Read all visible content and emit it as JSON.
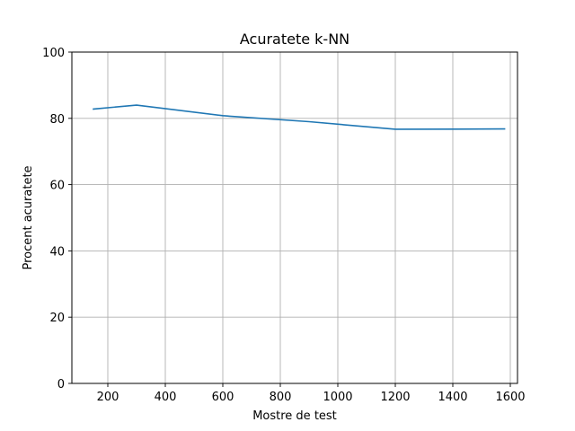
{
  "chart_data": {
    "type": "line",
    "title": "Acuratete k-NN",
    "xlabel": "Mostre de test",
    "ylabel": "Procent acuratete",
    "xlim": [
      75,
      1625
    ],
    "ylim": [
      0,
      100
    ],
    "grid": true,
    "x_ticks": [
      200,
      400,
      600,
      800,
      1000,
      1200,
      1400,
      1600
    ],
    "y_ticks": [
      0,
      20,
      40,
      60,
      80,
      100
    ],
    "line_color": "#1f77b4",
    "series": [
      {
        "x": [
          150,
          300,
          600,
          900,
          1200,
          1580
        ],
        "y": [
          82.8,
          84.0,
          80.8,
          79.0,
          76.7,
          76.8
        ]
      }
    ]
  }
}
